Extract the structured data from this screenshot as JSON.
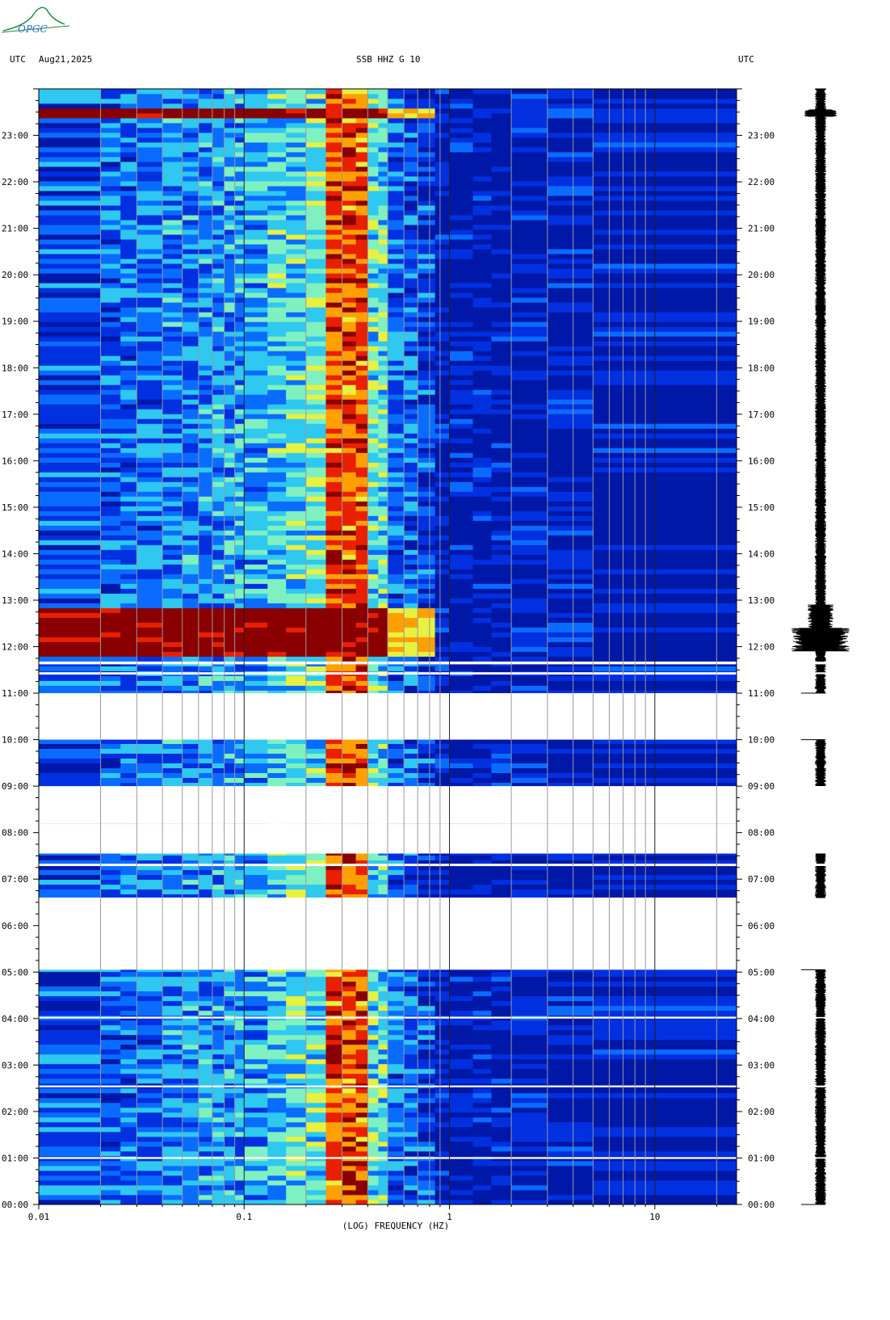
{
  "header": {
    "left_tz": "UTC",
    "date": "Aug21,2025",
    "title": "SSB HHZ G 10",
    "right_tz": "UTC",
    "logo_text": "OPGC"
  },
  "chart_data": {
    "type": "heatmap",
    "title": "SSB HHZ G 10",
    "xlabel": "(LOG) FREQUENCY (HZ)",
    "x_scale": "log",
    "xlim": [
      0.01,
      25
    ],
    "x_ticks": [
      0.01,
      0.1,
      1,
      10
    ],
    "x_tick_labels": [
      "0.01",
      "0.1",
      "1",
      "10"
    ],
    "ylim_hours": [
      0,
      24
    ],
    "y_tick_labels": [
      "00:00",
      "01:00",
      "02:00",
      "03:00",
      "04:00",
      "05:00",
      "06:00",
      "07:00",
      "08:00",
      "09:00",
      "10:00",
      "11:00",
      "12:00",
      "13:00",
      "14:00",
      "15:00",
      "16:00",
      "17:00",
      "18:00",
      "19:00",
      "20:00",
      "21:00",
      "22:00",
      "23:00"
    ],
    "gap_intervals_hours": [
      [
        0.98,
        1.02
      ],
      [
        2.52,
        2.56
      ],
      [
        4.0,
        4.04
      ],
      [
        5.05,
        6.6
      ],
      [
        5.3,
        5.35
      ],
      [
        5.55,
        5.6
      ],
      [
        6.35,
        6.6
      ],
      [
        7.28,
        7.33
      ],
      [
        7.55,
        8.15
      ],
      [
        8.15,
        8.2
      ],
      [
        8.2,
        9.0
      ],
      [
        10.0,
        11.0
      ],
      [
        10.4,
        10.5
      ],
      [
        10.85,
        10.95
      ],
      [
        11.4,
        11.45
      ],
      [
        11.62,
        11.68
      ]
    ],
    "event_windows_hours": [
      [
        11.75,
        12.85
      ],
      [
        23.35,
        23.55
      ]
    ],
    "colormap": [
      "#0018a8",
      "#0030e0",
      "#0a6cff",
      "#2ec8f0",
      "#7ff0c0",
      "#e8f040",
      "#ffa000",
      "#e82000",
      "#8a0000"
    ]
  }
}
